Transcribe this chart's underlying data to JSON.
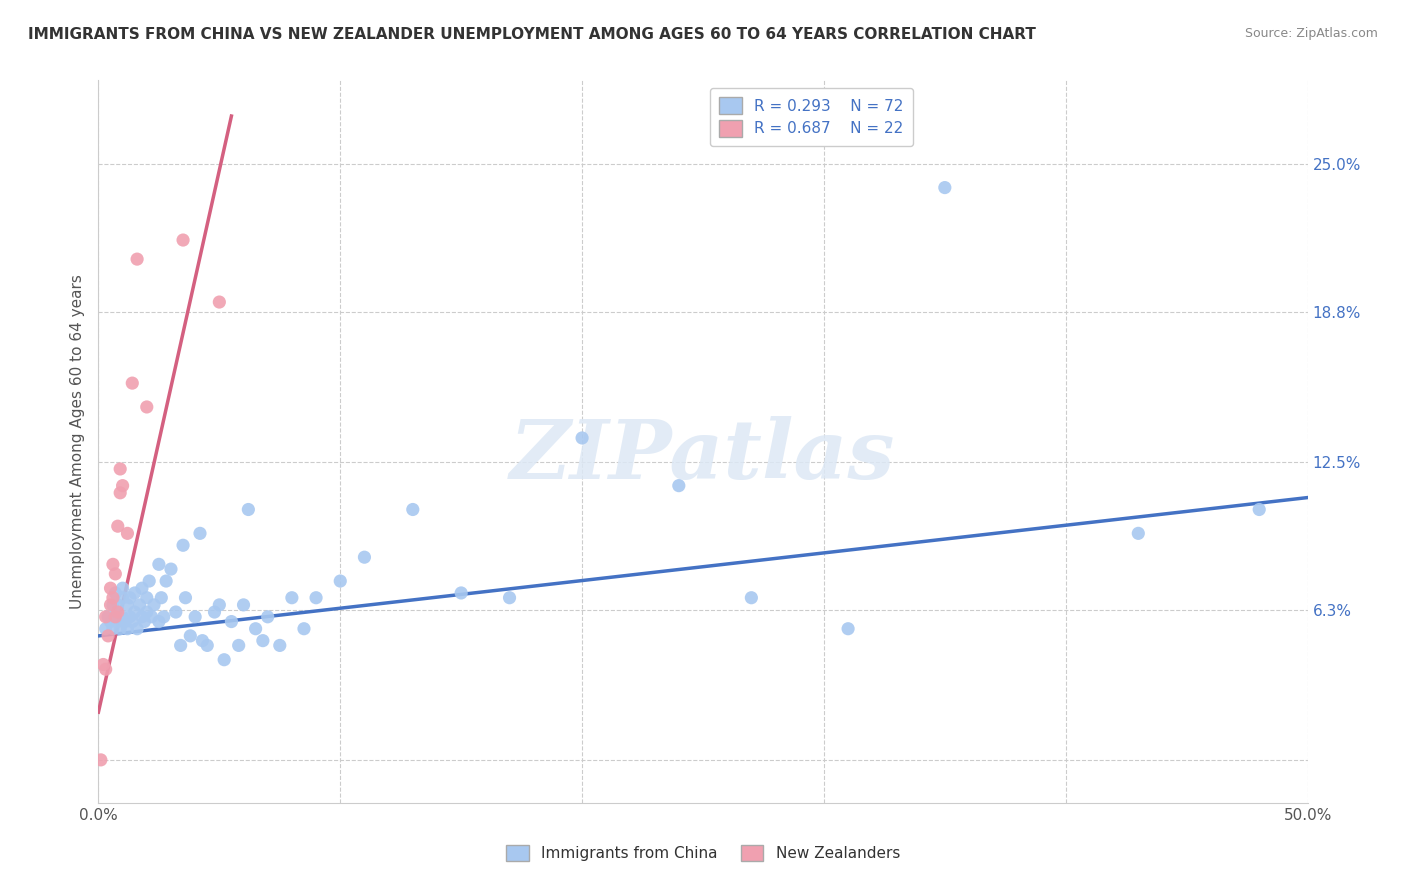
{
  "title": "IMMIGRANTS FROM CHINA VS NEW ZEALANDER UNEMPLOYMENT AMONG AGES 60 TO 64 YEARS CORRELATION CHART",
  "source": "Source: ZipAtlas.com",
  "ylabel": "Unemployment Among Ages 60 to 64 years",
  "xlim": [
    0.0,
    0.5
  ],
  "ylim": [
    -0.018,
    0.285
  ],
  "xtick_positions": [
    0.0,
    0.1,
    0.2,
    0.3,
    0.4,
    0.5
  ],
  "xticklabels": [
    "0.0%",
    "",
    "",
    "",
    "",
    "50.0%"
  ],
  "ytick_positions": [
    0.0,
    0.063,
    0.125,
    0.188,
    0.25
  ],
  "yticklabels_right": [
    "",
    "6.3%",
    "12.5%",
    "18.8%",
    "25.0%"
  ],
  "legend_R1": "R = 0.293",
  "legend_N1": "N = 72",
  "legend_R2": "R = 0.687",
  "legend_N2": "N = 22",
  "color_blue": "#a8c8f0",
  "color_pink": "#f0a0b0",
  "color_line_blue": "#4472c4",
  "color_line_pink": "#d46080",
  "watermark": "ZIPatlas",
  "blue_scatter_x": [
    0.003,
    0.004,
    0.005,
    0.006,
    0.006,
    0.007,
    0.007,
    0.008,
    0.008,
    0.009,
    0.01,
    0.01,
    0.01,
    0.011,
    0.012,
    0.012,
    0.013,
    0.013,
    0.014,
    0.015,
    0.015,
    0.016,
    0.017,
    0.018,
    0.018,
    0.019,
    0.02,
    0.02,
    0.021,
    0.022,
    0.023,
    0.025,
    0.025,
    0.026,
    0.027,
    0.028,
    0.03,
    0.032,
    0.034,
    0.035,
    0.036,
    0.038,
    0.04,
    0.042,
    0.043,
    0.045,
    0.048,
    0.05,
    0.052,
    0.055,
    0.058,
    0.06,
    0.062,
    0.065,
    0.068,
    0.07,
    0.075,
    0.08,
    0.085,
    0.09,
    0.1,
    0.11,
    0.13,
    0.15,
    0.17,
    0.2,
    0.24,
    0.27,
    0.31,
    0.35,
    0.43,
    0.48
  ],
  "blue_scatter_y": [
    0.055,
    0.06,
    0.058,
    0.055,
    0.065,
    0.06,
    0.07,
    0.058,
    0.065,
    0.055,
    0.06,
    0.068,
    0.072,
    0.058,
    0.055,
    0.065,
    0.06,
    0.068,
    0.058,
    0.062,
    0.07,
    0.055,
    0.065,
    0.06,
    0.072,
    0.058,
    0.062,
    0.068,
    0.075,
    0.06,
    0.065,
    0.082,
    0.058,
    0.068,
    0.06,
    0.075,
    0.08,
    0.062,
    0.048,
    0.09,
    0.068,
    0.052,
    0.06,
    0.095,
    0.05,
    0.048,
    0.062,
    0.065,
    0.042,
    0.058,
    0.048,
    0.065,
    0.105,
    0.055,
    0.05,
    0.06,
    0.048,
    0.068,
    0.055,
    0.068,
    0.075,
    0.085,
    0.105,
    0.07,
    0.068,
    0.135,
    0.115,
    0.068,
    0.055,
    0.24,
    0.095,
    0.105
  ],
  "pink_scatter_x": [
    0.001,
    0.002,
    0.003,
    0.003,
    0.004,
    0.005,
    0.005,
    0.006,
    0.006,
    0.007,
    0.007,
    0.008,
    0.008,
    0.009,
    0.009,
    0.01,
    0.012,
    0.014,
    0.016,
    0.02,
    0.035,
    0.05
  ],
  "pink_scatter_y": [
    0.0,
    0.04,
    0.038,
    0.06,
    0.052,
    0.065,
    0.072,
    0.068,
    0.082,
    0.06,
    0.078,
    0.062,
    0.098,
    0.112,
    0.122,
    0.115,
    0.095,
    0.158,
    0.21,
    0.148,
    0.218,
    0.192
  ],
  "blue_trend_x": [
    0.0,
    0.5
  ],
  "blue_trend_y": [
    0.052,
    0.11
  ],
  "pink_trend_x": [
    0.0,
    0.055
  ],
  "pink_trend_y": [
    0.02,
    0.27
  ]
}
